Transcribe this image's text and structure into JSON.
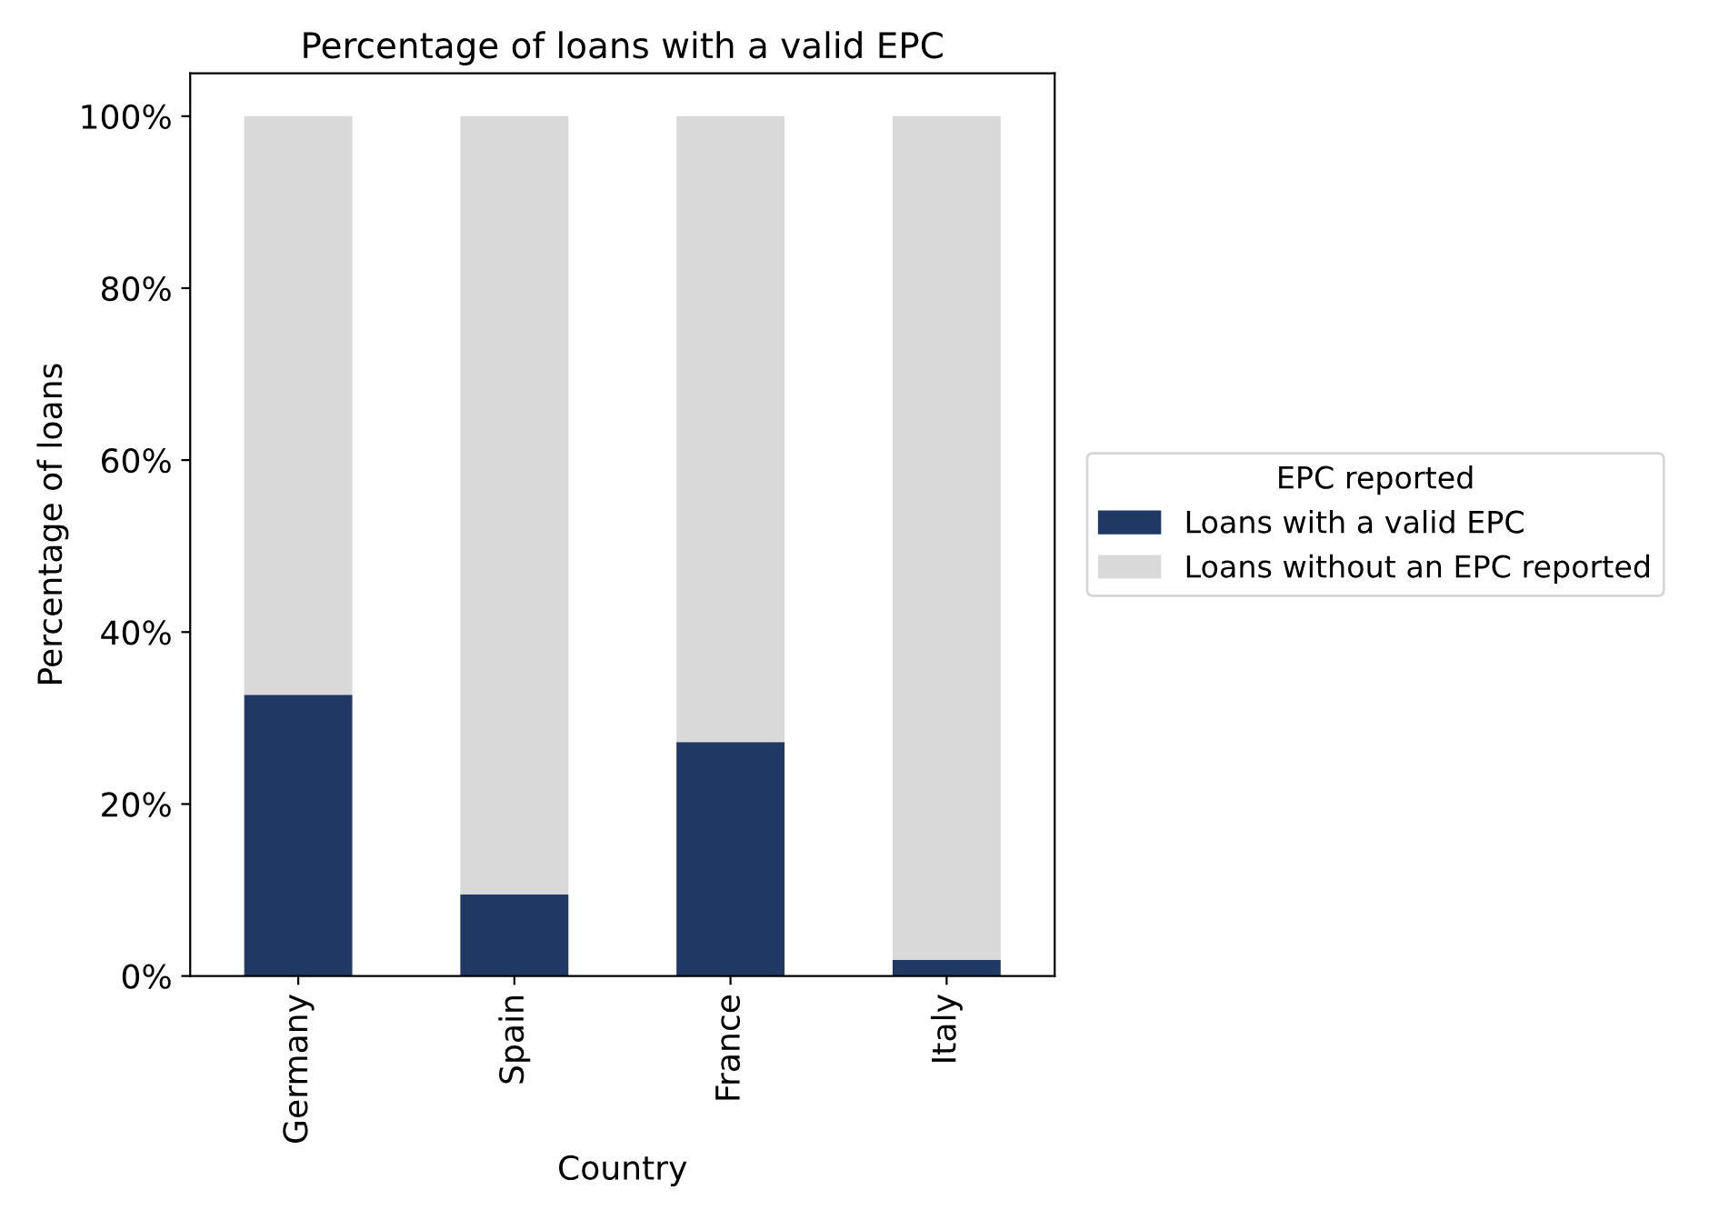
{
  "chart_data": {
    "type": "bar",
    "title": "Percentage of loans with a valid EPC",
    "xlabel": "Country",
    "ylabel": "Percentage of loans",
    "legend_title": "EPC reported",
    "categories": [
      "Germany",
      "Spain",
      "France",
      "Italy"
    ],
    "series": [
      {
        "name": "Loans with a valid EPC",
        "color": "#1f3864",
        "values": [
          32.7,
          9.5,
          27.2,
          1.9
        ]
      },
      {
        "name": "Loans without an EPC reported",
        "color": "#d9d9d9",
        "values": [
          67.3,
          90.5,
          72.8,
          98.1
        ]
      }
    ],
    "stacked": true,
    "ylim": [
      0,
      105
    ],
    "yticks": [
      {
        "value": 0,
        "label": "0%"
      },
      {
        "value": 20,
        "label": "20%"
      },
      {
        "value": 40,
        "label": "40%"
      },
      {
        "value": 60,
        "label": "60%"
      },
      {
        "value": 80,
        "label": "80%"
      },
      {
        "value": 100,
        "label": "100%"
      }
    ],
    "grid": false,
    "legend": "right"
  }
}
